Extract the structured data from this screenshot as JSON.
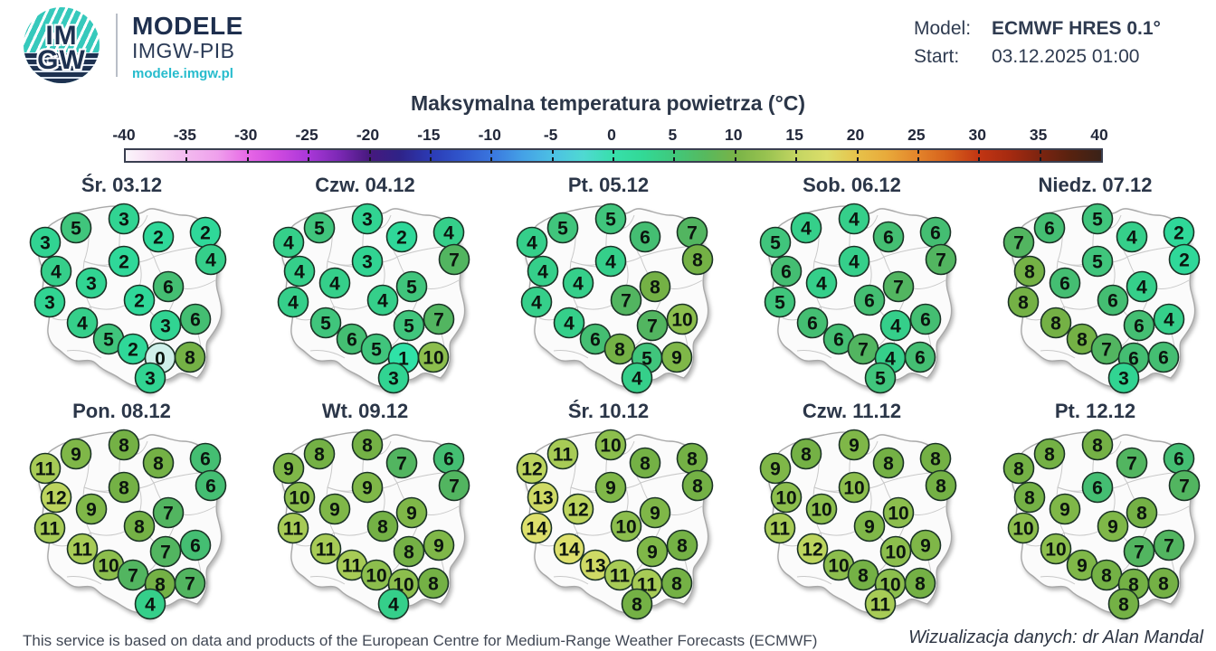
{
  "header": {
    "logo": {
      "monogram_top": "IM",
      "monogram_bottom": "GW",
      "brand": "MODELE",
      "org": "IMGW-PIB",
      "url": "modele.imgw.pl"
    },
    "model_label": "Model:",
    "model_value": "ECMWF HRES 0.1°",
    "start_label": "Start:",
    "start_value": "03.12.2025 01:00"
  },
  "title": "Maksymalna temperatura powietrza (°C)",
  "colorbar": {
    "gradient": [
      {
        "p": 0,
        "c": "#fbf6fb"
      },
      {
        "p": 3,
        "c": "#f7d8f3"
      },
      {
        "p": 6.25,
        "c": "#f3baef"
      },
      {
        "p": 9.4,
        "c": "#efa0ec"
      },
      {
        "p": 12.5,
        "c": "#e767e6"
      },
      {
        "p": 15.6,
        "c": "#cf4ae0"
      },
      {
        "p": 18.75,
        "c": "#a937d8"
      },
      {
        "p": 21.9,
        "c": "#7b28b4"
      },
      {
        "p": 25,
        "c": "#47197e"
      },
      {
        "p": 28,
        "c": "#2f2287"
      },
      {
        "p": 31.25,
        "c": "#2b3ab4"
      },
      {
        "p": 34.4,
        "c": "#3056cc"
      },
      {
        "p": 37.5,
        "c": "#3a76de"
      },
      {
        "p": 40.6,
        "c": "#44a0e6"
      },
      {
        "p": 43.75,
        "c": "#4cc0e4"
      },
      {
        "p": 46.9,
        "c": "#4fd9d2"
      },
      {
        "p": 50,
        "c": "#38dfab"
      },
      {
        "p": 53,
        "c": "#32d996"
      },
      {
        "p": 56.25,
        "c": "#40c87b"
      },
      {
        "p": 59.4,
        "c": "#57b95e"
      },
      {
        "p": 62.5,
        "c": "#78b347"
      },
      {
        "p": 65.6,
        "c": "#97c250"
      },
      {
        "p": 68.75,
        "c": "#c3d562"
      },
      {
        "p": 71.9,
        "c": "#dcde6a"
      },
      {
        "p": 75,
        "c": "#e7c24a"
      },
      {
        "p": 78.1,
        "c": "#e8a93a"
      },
      {
        "p": 81.25,
        "c": "#e3832a"
      },
      {
        "p": 84.4,
        "c": "#d55f1b"
      },
      {
        "p": 87.5,
        "c": "#c23513"
      },
      {
        "p": 90.6,
        "c": "#a62a10"
      },
      {
        "p": 93.75,
        "c": "#7c2410"
      },
      {
        "p": 96.9,
        "c": "#57220f"
      },
      {
        "p": 100,
        "c": "#3a2218"
      }
    ]
  },
  "scale_colors": {
    "0": "#cff0ea",
    "1": "#2fe2a7",
    "2": "#2fd899",
    "3": "#31d492",
    "4": "#35cf8a",
    "5": "#40c57c",
    "6": "#44be72",
    "7": "#52b560",
    "8": "#74b145",
    "9": "#7fb748",
    "10": "#8cbe4d",
    "11": "#a7cb56",
    "12": "#bcd45e",
    "13": "#cfda65",
    "14": "#dde06c"
  },
  "chart_data": {
    "type": "map-grid",
    "title": "Maksymalna temperatura powietrza (°C)",
    "unit": "°C",
    "model": "ECMWF HRES 0.1°",
    "start": "03.12.2025 01:00",
    "colorbar_ticks": [
      -40,
      -35,
      -30,
      -25,
      -20,
      -15,
      -10,
      -5,
      0,
      5,
      10,
      15,
      20,
      25,
      30,
      35,
      40
    ],
    "station_points": [
      [
        84,
        62
      ],
      [
        137,
        52
      ],
      [
        227,
        67
      ],
      [
        50,
        78
      ],
      [
        175,
        72
      ],
      [
        137,
        99
      ],
      [
        233,
        97
      ],
      [
        62,
        110
      ],
      [
        101,
        123
      ],
      [
        186,
        127
      ],
      [
        55,
        144
      ],
      [
        154,
        142
      ],
      [
        91,
        167
      ],
      [
        183,
        170
      ],
      [
        216,
        163
      ],
      [
        120,
        185
      ],
      [
        147,
        196
      ],
      [
        177,
        206
      ],
      [
        210,
        205
      ],
      [
        166,
        228
      ]
    ],
    "days": [
      {
        "label": "Śr. 03.12",
        "values": [
          5,
          3,
          2,
          3,
          2,
          2,
          4,
          4,
          3,
          6,
          3,
          2,
          4,
          3,
          6,
          5,
          2,
          0,
          8,
          3
        ]
      },
      {
        "label": "Czw. 04.12",
        "values": [
          5,
          3,
          4,
          4,
          2,
          3,
          7,
          4,
          4,
          5,
          4,
          4,
          5,
          5,
          7,
          6,
          5,
          1,
          10,
          3
        ]
      },
      {
        "label": "Pt. 05.12",
        "values": [
          5,
          5,
          7,
          4,
          6,
          4,
          8,
          4,
          4,
          8,
          4,
          7,
          4,
          7,
          10,
          6,
          8,
          5,
          9,
          4
        ]
      },
      {
        "label": "Sob. 06.12",
        "values": [
          4,
          4,
          6,
          5,
          6,
          4,
          7,
          6,
          4,
          7,
          5,
          6,
          6,
          4,
          6,
          6,
          7,
          4,
          6,
          5
        ]
      },
      {
        "label": "Niedz. 07.12",
        "values": [
          6,
          5,
          2,
          7,
          4,
          5,
          2,
          8,
          6,
          4,
          8,
          6,
          8,
          6,
          4,
          8,
          7,
          6,
          6,
          3
        ]
      },
      {
        "label": "Pon. 08.12",
        "values": [
          9,
          8,
          6,
          11,
          8,
          8,
          6,
          12,
          9,
          7,
          11,
          8,
          11,
          7,
          6,
          10,
          7,
          8,
          7,
          4
        ]
      },
      {
        "label": "Wt. 09.12",
        "values": [
          8,
          8,
          6,
          9,
          7,
          9,
          7,
          10,
          9,
          9,
          11,
          8,
          11,
          8,
          9,
          11,
          10,
          10,
          8,
          4
        ]
      },
      {
        "label": "Śr. 10.12",
        "values": [
          11,
          10,
          8,
          12,
          8,
          9,
          8,
          13,
          12,
          9,
          14,
          10,
          14,
          9,
          8,
          13,
          11,
          11,
          8,
          8
        ]
      },
      {
        "label": "Czw. 11.12",
        "values": [
          8,
          9,
          8,
          9,
          8,
          10,
          8,
          10,
          10,
          10,
          11,
          9,
          12,
          10,
          9,
          10,
          8,
          10,
          8,
          11
        ]
      },
      {
        "label": "Pt. 12.12",
        "values": [
          8,
          8,
          6,
          8,
          7,
          6,
          7,
          8,
          9,
          8,
          10,
          9,
          10,
          7,
          7,
          9,
          8,
          8,
          8,
          8
        ]
      }
    ]
  },
  "footer": {
    "left": "This service is based on data and products of the European Centre for Medium-Range Weather Forecasts (ECMWF)",
    "right": "Wizualizacja danych: dr Alan Mandal"
  }
}
